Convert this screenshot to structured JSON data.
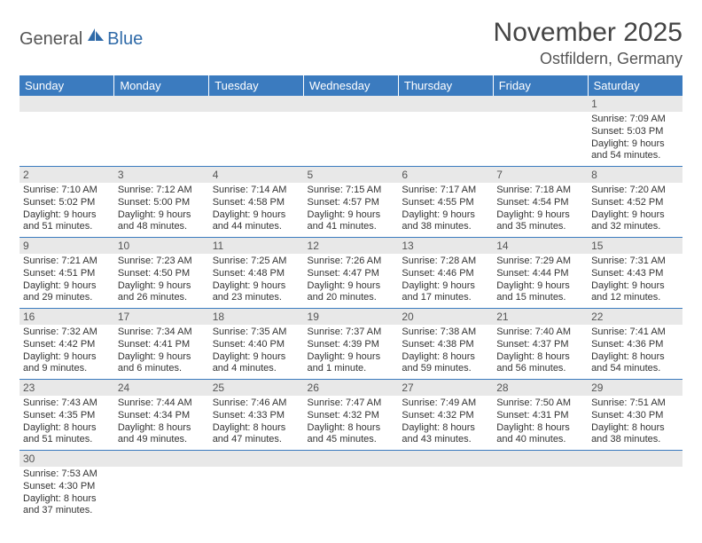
{
  "logo": {
    "part1": "General",
    "part2": "Blue"
  },
  "title": "November 2025",
  "location": "Ostfildern, Germany",
  "colors": {
    "header_bg": "#3b7bbf",
    "header_text": "#ffffff",
    "daynum_bg": "#e8e8e8",
    "cell_text": "#333333",
    "rule": "#3b7bbf"
  },
  "day_names": [
    "Sunday",
    "Monday",
    "Tuesday",
    "Wednesday",
    "Thursday",
    "Friday",
    "Saturday"
  ],
  "weeks": [
    [
      null,
      null,
      null,
      null,
      null,
      null,
      {
        "n": "1",
        "sr": "Sunrise: 7:09 AM",
        "ss": "Sunset: 5:03 PM",
        "dl": "Daylight: 9 hours and 54 minutes."
      }
    ],
    [
      {
        "n": "2",
        "sr": "Sunrise: 7:10 AM",
        "ss": "Sunset: 5:02 PM",
        "dl": "Daylight: 9 hours and 51 minutes."
      },
      {
        "n": "3",
        "sr": "Sunrise: 7:12 AM",
        "ss": "Sunset: 5:00 PM",
        "dl": "Daylight: 9 hours and 48 minutes."
      },
      {
        "n": "4",
        "sr": "Sunrise: 7:14 AM",
        "ss": "Sunset: 4:58 PM",
        "dl": "Daylight: 9 hours and 44 minutes."
      },
      {
        "n": "5",
        "sr": "Sunrise: 7:15 AM",
        "ss": "Sunset: 4:57 PM",
        "dl": "Daylight: 9 hours and 41 minutes."
      },
      {
        "n": "6",
        "sr": "Sunrise: 7:17 AM",
        "ss": "Sunset: 4:55 PM",
        "dl": "Daylight: 9 hours and 38 minutes."
      },
      {
        "n": "7",
        "sr": "Sunrise: 7:18 AM",
        "ss": "Sunset: 4:54 PM",
        "dl": "Daylight: 9 hours and 35 minutes."
      },
      {
        "n": "8",
        "sr": "Sunrise: 7:20 AM",
        "ss": "Sunset: 4:52 PM",
        "dl": "Daylight: 9 hours and 32 minutes."
      }
    ],
    [
      {
        "n": "9",
        "sr": "Sunrise: 7:21 AM",
        "ss": "Sunset: 4:51 PM",
        "dl": "Daylight: 9 hours and 29 minutes."
      },
      {
        "n": "10",
        "sr": "Sunrise: 7:23 AM",
        "ss": "Sunset: 4:50 PM",
        "dl": "Daylight: 9 hours and 26 minutes."
      },
      {
        "n": "11",
        "sr": "Sunrise: 7:25 AM",
        "ss": "Sunset: 4:48 PM",
        "dl": "Daylight: 9 hours and 23 minutes."
      },
      {
        "n": "12",
        "sr": "Sunrise: 7:26 AM",
        "ss": "Sunset: 4:47 PM",
        "dl": "Daylight: 9 hours and 20 minutes."
      },
      {
        "n": "13",
        "sr": "Sunrise: 7:28 AM",
        "ss": "Sunset: 4:46 PM",
        "dl": "Daylight: 9 hours and 17 minutes."
      },
      {
        "n": "14",
        "sr": "Sunrise: 7:29 AM",
        "ss": "Sunset: 4:44 PM",
        "dl": "Daylight: 9 hours and 15 minutes."
      },
      {
        "n": "15",
        "sr": "Sunrise: 7:31 AM",
        "ss": "Sunset: 4:43 PM",
        "dl": "Daylight: 9 hours and 12 minutes."
      }
    ],
    [
      {
        "n": "16",
        "sr": "Sunrise: 7:32 AM",
        "ss": "Sunset: 4:42 PM",
        "dl": "Daylight: 9 hours and 9 minutes."
      },
      {
        "n": "17",
        "sr": "Sunrise: 7:34 AM",
        "ss": "Sunset: 4:41 PM",
        "dl": "Daylight: 9 hours and 6 minutes."
      },
      {
        "n": "18",
        "sr": "Sunrise: 7:35 AM",
        "ss": "Sunset: 4:40 PM",
        "dl": "Daylight: 9 hours and 4 minutes."
      },
      {
        "n": "19",
        "sr": "Sunrise: 7:37 AM",
        "ss": "Sunset: 4:39 PM",
        "dl": "Daylight: 9 hours and 1 minute."
      },
      {
        "n": "20",
        "sr": "Sunrise: 7:38 AM",
        "ss": "Sunset: 4:38 PM",
        "dl": "Daylight: 8 hours and 59 minutes."
      },
      {
        "n": "21",
        "sr": "Sunrise: 7:40 AM",
        "ss": "Sunset: 4:37 PM",
        "dl": "Daylight: 8 hours and 56 minutes."
      },
      {
        "n": "22",
        "sr": "Sunrise: 7:41 AM",
        "ss": "Sunset: 4:36 PM",
        "dl": "Daylight: 8 hours and 54 minutes."
      }
    ],
    [
      {
        "n": "23",
        "sr": "Sunrise: 7:43 AM",
        "ss": "Sunset: 4:35 PM",
        "dl": "Daylight: 8 hours and 51 minutes."
      },
      {
        "n": "24",
        "sr": "Sunrise: 7:44 AM",
        "ss": "Sunset: 4:34 PM",
        "dl": "Daylight: 8 hours and 49 minutes."
      },
      {
        "n": "25",
        "sr": "Sunrise: 7:46 AM",
        "ss": "Sunset: 4:33 PM",
        "dl": "Daylight: 8 hours and 47 minutes."
      },
      {
        "n": "26",
        "sr": "Sunrise: 7:47 AM",
        "ss": "Sunset: 4:32 PM",
        "dl": "Daylight: 8 hours and 45 minutes."
      },
      {
        "n": "27",
        "sr": "Sunrise: 7:49 AM",
        "ss": "Sunset: 4:32 PM",
        "dl": "Daylight: 8 hours and 43 minutes."
      },
      {
        "n": "28",
        "sr": "Sunrise: 7:50 AM",
        "ss": "Sunset: 4:31 PM",
        "dl": "Daylight: 8 hours and 40 minutes."
      },
      {
        "n": "29",
        "sr": "Sunrise: 7:51 AM",
        "ss": "Sunset: 4:30 PM",
        "dl": "Daylight: 8 hours and 38 minutes."
      }
    ],
    [
      {
        "n": "30",
        "sr": "Sunrise: 7:53 AM",
        "ss": "Sunset: 4:30 PM",
        "dl": "Daylight: 8 hours and 37 minutes."
      },
      null,
      null,
      null,
      null,
      null,
      null
    ]
  ]
}
